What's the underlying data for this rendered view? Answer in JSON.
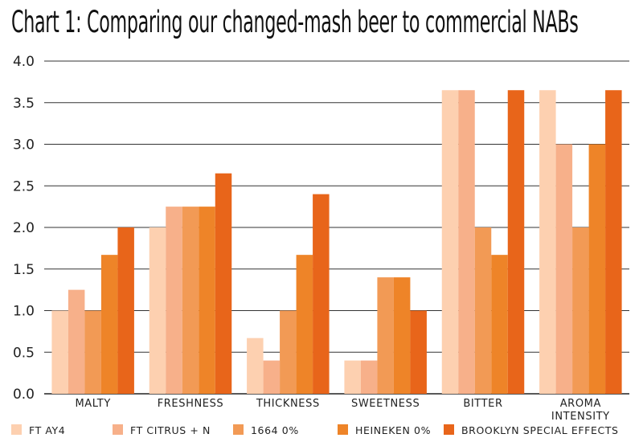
{
  "chart_data": {
    "type": "bar",
    "title": "Chart 1:  Comparing our changed-mash beer to commercial NABs",
    "xlabel": "",
    "ylabel": "",
    "ylim": [
      0,
      4.0
    ],
    "yticks": [
      "0.0",
      "0.5",
      "1.0",
      "1.5",
      "2.0",
      "2.5",
      "3.0",
      "3.5",
      "4.0"
    ],
    "grid": true,
    "legend_position": "bottom",
    "categories": [
      [
        "MALTY"
      ],
      [
        "FRESHNESS"
      ],
      [
        "THICKNESS"
      ],
      [
        "SWEETNESS"
      ],
      [
        "BITTER"
      ],
      [
        "AROMA",
        "INTENSITY"
      ]
    ],
    "series": [
      {
        "name": "FT AY4",
        "color": "#fdd0b0",
        "values": [
          1.0,
          2.0,
          0.67,
          0.4,
          3.65,
          3.65
        ]
      },
      {
        "name": "FT CITRUS + N",
        "color": "#f7b08a",
        "values": [
          1.25,
          2.25,
          0.4,
          0.4,
          3.65,
          3.0
        ]
      },
      {
        "name": "1664 0%",
        "color": "#f29a55",
        "values": [
          1.0,
          2.25,
          1.0,
          1.4,
          2.0,
          2.0
        ]
      },
      {
        "name": "HEINEKEN 0%",
        "color": "#ee8428",
        "values": [
          1.67,
          2.25,
          1.67,
          1.4,
          1.67,
          3.0
        ]
      },
      {
        "name": "BROOKLYN SPECIAL EFFECTS",
        "color": "#e8651a",
        "values": [
          2.0,
          2.65,
          2.4,
          1.0,
          3.65,
          3.65
        ]
      }
    ]
  }
}
